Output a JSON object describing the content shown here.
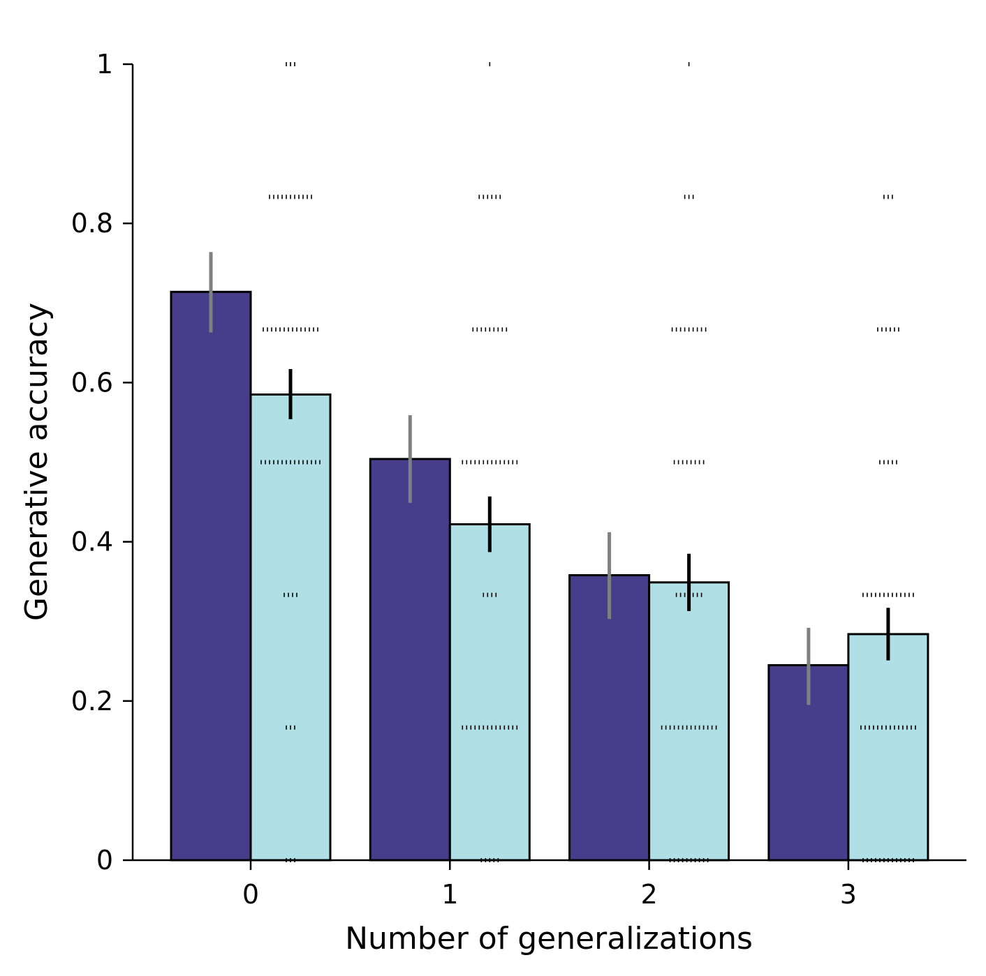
{
  "chart_data": {
    "type": "bar",
    "xlabel": "Number of generalizations",
    "ylabel": "Generative accuracy",
    "title": "",
    "categories": [
      "0",
      "1",
      "2",
      "3"
    ],
    "ylim": [
      0,
      1
    ],
    "yticks": [
      0,
      0.2,
      0.4,
      0.6,
      0.8,
      1
    ],
    "ytick_labels": [
      "0",
      "0.2",
      "0.4",
      "0.6",
      "0.8",
      "1"
    ],
    "grid": false,
    "series": [
      {
        "values": [
          0.714,
          0.504,
          0.358,
          0.245
        ],
        "error_low": [
          0.663,
          0.449,
          0.303,
          0.195
        ],
        "error_high": [
          0.764,
          0.559,
          0.412,
          0.292
        ],
        "color": "#483d8b",
        "error_color": "#808080"
      },
      {
        "values": [
          0.585,
          0.422,
          0.349,
          0.284
        ],
        "error_low": [
          0.554,
          0.387,
          0.313,
          0.251
        ],
        "error_high": [
          0.617,
          0.457,
          0.385,
          0.317
        ],
        "color": "#b0e0e6",
        "error_color": "#000000"
      }
    ],
    "strip_points": {
      "levels": [
        0,
        0.1667,
        0.3333,
        0.5,
        0.6667,
        0.8333,
        1
      ],
      "counts": [
        [
          3,
          3,
          4,
          15,
          14,
          11,
          3
        ],
        [
          5,
          14,
          4,
          14,
          9,
          6,
          1
        ],
        [
          10,
          14,
          7,
          8,
          9,
          3,
          1
        ],
        [
          13,
          14,
          13,
          5,
          6,
          3,
          0
        ]
      ],
      "color": "#000000"
    }
  }
}
